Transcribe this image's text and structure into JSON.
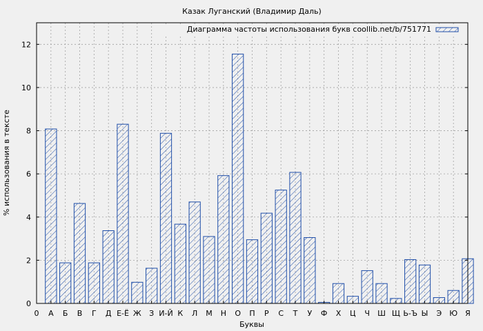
{
  "chart_data": {
    "type": "bar",
    "title": "Казак Луганский (Владимир Даль)",
    "xlabel": "Буквы",
    "ylabel": "% использования в тексте",
    "legend": {
      "label": "Диаграмма частоты использования букв coollib.net/b/751771",
      "position": "top-right"
    },
    "grid": true,
    "ylim": [
      0,
      13
    ],
    "yticks": [
      0,
      2,
      4,
      6,
      8,
      10,
      12
    ],
    "categories": [
      "А",
      "Б",
      "В",
      "Г",
      "Д",
      "Е-Ё",
      "Ж",
      "З",
      "И-Й",
      "К",
      "Л",
      "М",
      "Н",
      "О",
      "П",
      "Р",
      "С",
      "Т",
      "У",
      "Ф",
      "Х",
      "Ц",
      "Ч",
      "Ш",
      "Щ",
      "Ь-Ъ",
      "Ы",
      "Э",
      "Ю",
      "Я"
    ],
    "values": [
      8.08,
      1.88,
      4.63,
      1.88,
      3.37,
      8.3,
      0.98,
      1.63,
      7.88,
      3.67,
      4.7,
      3.1,
      5.92,
      11.55,
      2.95,
      4.18,
      5.25,
      6.07,
      3.05,
      0.05,
      0.92,
      0.33,
      1.52,
      0.92,
      0.23,
      2.03,
      1.78,
      0.27,
      0.6,
      2.07
    ],
    "xtick_labels": [
      "0",
      "А",
      "Б",
      "В",
      "Г",
      "Д",
      "Е-Ё",
      "Ж",
      "З",
      "И-Й",
      "К",
      "Л",
      "М",
      "Н",
      "О",
      "П",
      "Р",
      "С",
      "Т",
      "У",
      "Ф",
      "Х",
      "Ц",
      "Ч",
      "Ш",
      "Щ",
      "Ь-Ъ",
      "Ы",
      "Э",
      "Ю",
      "Я"
    ],
    "colors": {
      "bar_stroke": "#1f4ea8",
      "plot_bg": "#f0f0f0",
      "grid": "#a0a0a0"
    }
  }
}
